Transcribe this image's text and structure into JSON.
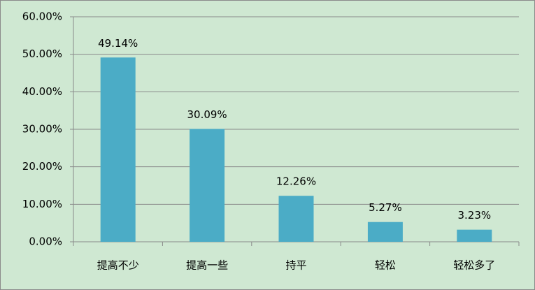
{
  "chart_data": {
    "type": "bar",
    "categories": [
      "提高不少",
      "提高一些",
      "持平",
      "轻松",
      "轻松多了"
    ],
    "values": [
      49.14,
      30.09,
      12.26,
      5.27,
      3.23
    ],
    "value_labels": [
      "49.14%",
      "30.09%",
      "12.26%",
      "5.27%",
      "3.23%"
    ],
    "color": "#4bacc6",
    "ylim": [
      0,
      60
    ],
    "yticks": [
      {
        "value": 0,
        "label": "0.00%"
      },
      {
        "value": 10,
        "label": "10.00%"
      },
      {
        "value": 20,
        "label": "20.00%"
      },
      {
        "value": 30,
        "label": "30.00%"
      },
      {
        "value": 40,
        "label": "40.00%"
      },
      {
        "value": 50,
        "label": "50.00%"
      },
      {
        "value": 60,
        "label": "60.00%"
      }
    ],
    "grid": true
  }
}
